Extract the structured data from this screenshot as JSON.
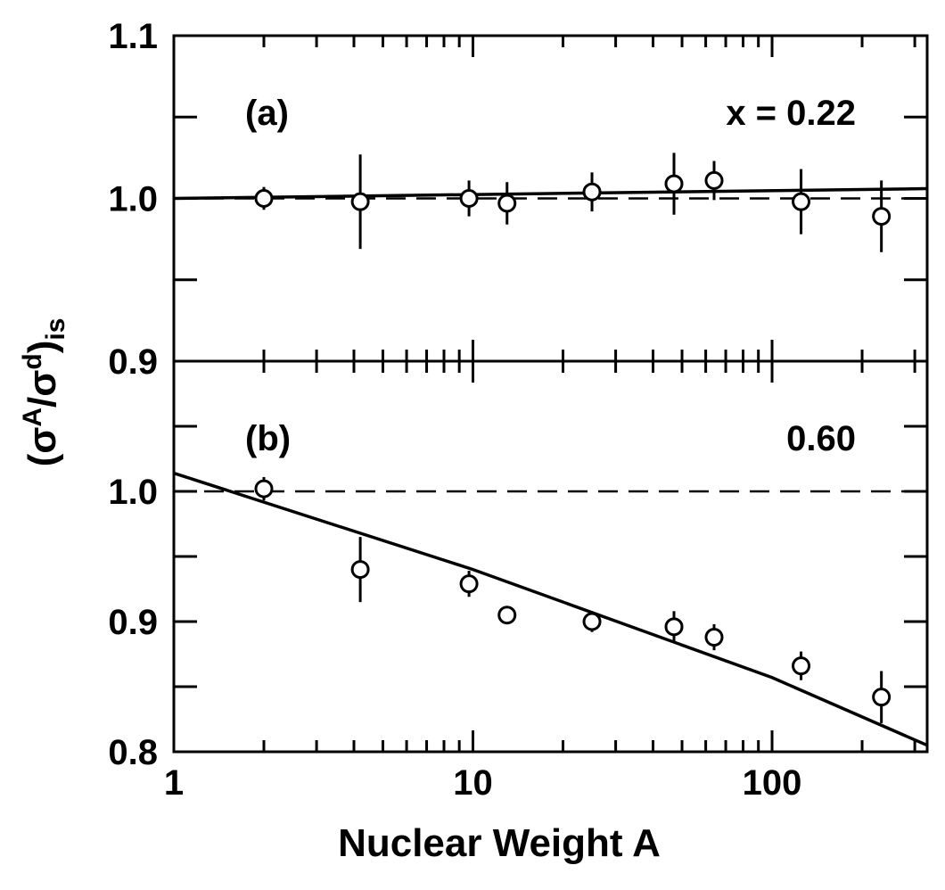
{
  "chart_data": [
    {
      "type": "scatter",
      "log_x": true,
      "annotations": [
        "(a)",
        "x = 0.22"
      ],
      "xlim": [
        1,
        330
      ],
      "xmajorticks": [
        1,
        10,
        100
      ],
      "xminorticks": [
        2,
        3,
        4,
        5,
        6,
        7,
        8,
        9,
        20,
        30,
        40,
        50,
        60,
        70,
        80,
        90,
        200,
        300
      ],
      "ylim": [
        0.9,
        1.1
      ],
      "yticks": [
        0.9,
        {
          "value": 1,
          "label": "1.0"
        },
        1.1
      ],
      "yminorticks": [
        0.95,
        1.05
      ],
      "reference_line": 1,
      "series": [
        {
          "color": "#000000",
          "x": [
            2.0,
            4.2,
            9.7,
            13,
            25,
            47,
            64,
            125,
            232
          ],
          "values": [
            1.0,
            0.998,
            1.0,
            0.997,
            1.004,
            1.009,
            1.011,
            0.998,
            0.989
          ],
          "errors": [
            0.007,
            0.029,
            0.011,
            0.013,
            0.012,
            0.019,
            0.012,
            0.02,
            0.022
          ]
        }
      ],
      "fit": {
        "x": [
          1,
          330
        ],
        "values": [
          1.0,
          1.006
        ]
      }
    },
    {
      "type": "scatter",
      "log_x": true,
      "annotations": [
        "(b)",
        "0.60"
      ],
      "xlabel": "Nuclear Weight A",
      "ylabel": [
        "(σ",
        "A",
        "/σ",
        "d",
        ")",
        "is"
      ],
      "xlim": [
        1,
        330
      ],
      "xticks": [
        1,
        10,
        100
      ],
      "xminorticks": [
        2,
        3,
        4,
        5,
        6,
        7,
        8,
        9,
        20,
        30,
        40,
        50,
        60,
        70,
        80,
        90,
        200,
        300
      ],
      "ylim": [
        0.8,
        1.1
      ],
      "yticks": [
        0.8,
        0.9,
        {
          "value": 1,
          "label": "1.0"
        }
      ],
      "yminorticks": [
        0.85,
        0.95,
        1.05
      ],
      "reference_line": 1,
      "series": [
        {
          "color": "#000000",
          "x": [
            2.0,
            4.2,
            9.7,
            13,
            25,
            47,
            64,
            125,
            232
          ],
          "values": [
            1.002,
            0.94,
            0.929,
            0.905,
            0.9,
            0.896,
            0.888,
            0.866,
            0.842
          ],
          "errors": [
            0.009,
            0.025,
            0.01,
            0.006,
            0.008,
            0.012,
            0.01,
            0.011,
            0.02
          ]
        }
      ],
      "fit": {
        "x": [
          1,
          10,
          100,
          330
        ],
        "values": [
          1.014,
          0.94,
          0.857,
          0.805
        ]
      }
    }
  ]
}
